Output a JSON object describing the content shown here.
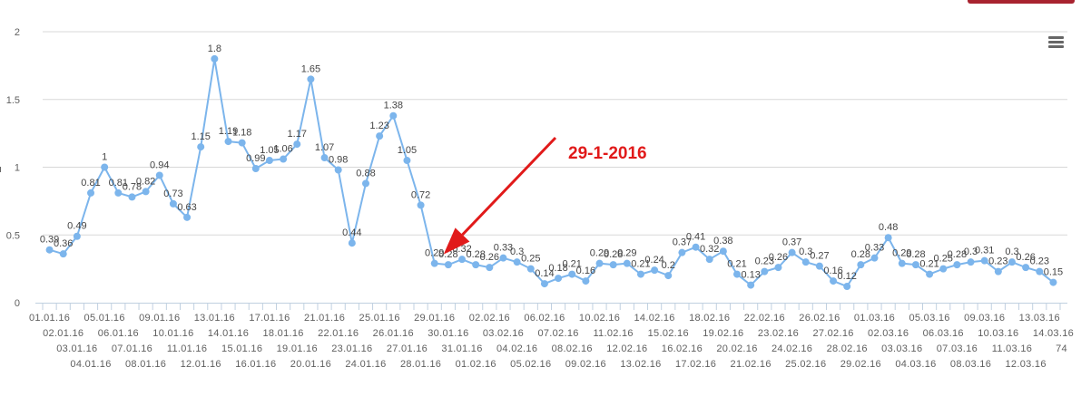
{
  "chart_data": {
    "type": "line",
    "categories": [
      "01.01.16",
      "02.01.16",
      "03.01.16",
      "04.01.16",
      "05.01.16",
      "06.01.16",
      "07.01.16",
      "08.01.16",
      "09.01.16",
      "10.01.16",
      "11.01.16",
      "12.01.16",
      "13.01.16",
      "14.01.16",
      "15.01.16",
      "16.01.16",
      "17.01.16",
      "18.01.16",
      "19.01.16",
      "20.01.16",
      "21.01.16",
      "22.01.16",
      "23.01.16",
      "24.01.16",
      "25.01.16",
      "26.01.16",
      "27.01.16",
      "28.01.16",
      "29.01.16",
      "30.01.16",
      "31.01.16",
      "01.02.16",
      "02.02.16",
      "03.02.16",
      "04.02.16",
      "05.02.16",
      "06.02.16",
      "07.02.16",
      "08.02.16",
      "09.02.16",
      "10.02.16",
      "11.02.16",
      "12.02.16",
      "13.02.16",
      "14.02.16",
      "15.02.16",
      "16.02.16",
      "17.02.16",
      "18.02.16",
      "19.02.16",
      "20.02.16",
      "21.02.16",
      "22.02.16",
      "23.02.16",
      "24.02.16",
      "25.02.16",
      "26.02.16",
      "27.02.16",
      "28.02.16",
      "29.02.16",
      "01.03.16",
      "02.03.16",
      "03.03.16",
      "04.03.16",
      "05.03.16",
      "06.03.16",
      "07.03.16",
      "08.03.16",
      "09.03.16",
      "10.03.16",
      "11.03.16",
      "12.03.16",
      "13.03.16",
      "14.03.16"
    ],
    "extra_tick_label": "74",
    "series": [
      {
        "values": [
          0.39,
          0.36,
          0.49,
          0.81,
          1,
          0.81,
          0.78,
          0.82,
          0.94,
          0.73,
          0.63,
          1.15,
          1.8,
          1.19,
          1.18,
          0.99,
          1.05,
          1.06,
          1.17,
          1.65,
          1.07,
          0.98,
          0.44,
          0.88,
          1.23,
          1.38,
          1.05,
          0.72,
          0.29,
          0.28,
          0.32,
          0.28,
          0.26,
          0.33,
          0.3,
          0.25,
          0.14,
          0.18,
          0.21,
          0.16,
          0.29,
          0.28,
          0.29,
          0.21,
          0.24,
          0.2,
          0.37,
          0.41,
          0.32,
          0.38,
          0.21,
          0.13,
          0.23,
          0.26,
          0.37,
          0.3,
          0.27,
          0.16,
          0.12,
          0.28,
          0.33,
          0.48,
          0.29,
          0.28,
          0.21,
          0.25,
          0.28,
          0.3,
          0.31,
          0.23,
          0.3,
          0.26,
          0.23,
          0.15
        ],
        "color": "#7cb5ec"
      }
    ],
    "yticks": [
      "0",
      "0.5",
      "1",
      "1.5",
      "2"
    ],
    "ylim": [
      0,
      2
    ],
    "grid": true,
    "legend": "none",
    "annotation": {
      "text": "29-1-2016",
      "target_category": "29.01.16",
      "color": "#e11a1a"
    }
  },
  "ui": {
    "menu_icon": "hamburger-menu-icon",
    "y_axis_stub": "ı"
  }
}
